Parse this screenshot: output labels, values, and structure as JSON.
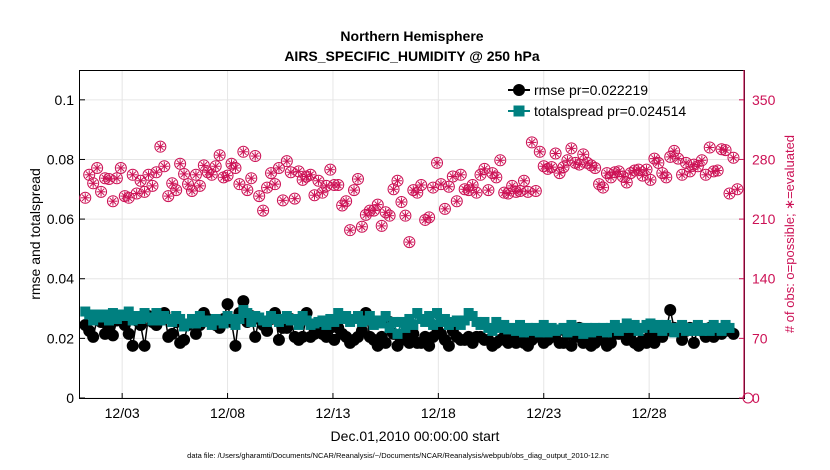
{
  "chart_data": {
    "type": "scatter",
    "title": "Northern Hemisphere",
    "subtitle": "AIRS_SPECIFIC_HUMIDITY @ 250 hPa",
    "xlabel": "Dec.01,2010 00:00:00 start",
    "ylabel": "rmse and totalspread",
    "ylabel_right": "# of obs: o=possible; ∗=evaluated",
    "footer": "data file: /Users/gharamti/Documents/NCAR/Reanalysis/~/Documents/NCAR/Reanalysis/webpub/obs_diag_output_2010-12.nc",
    "xlim": [
      1,
      32.5
    ],
    "ylim": [
      0,
      0.11
    ],
    "ylim_right": [
      0,
      385
    ],
    "x_ticks": [
      3,
      8,
      13,
      18,
      23,
      28
    ],
    "x_tick_labels": [
      "12/03",
      "12/08",
      "12/13",
      "12/18",
      "12/23",
      "12/28"
    ],
    "y_ticks": [
      0,
      0.02,
      0.04,
      0.06,
      0.08,
      0.1
    ],
    "y_tick_labels": [
      "0",
      "0.02",
      "0.04",
      "0.06",
      "0.08",
      "0.1"
    ],
    "y_right_ticks": [
      0,
      70,
      140,
      210,
      280,
      350
    ],
    "y_right_tick_labels": [
      "0",
      "70",
      "140",
      "210",
      "280",
      "350"
    ],
    "legend": {
      "placement": "top-right",
      "entries": [
        "rmse pr=0.022219",
        "totalspread pr=0.024514"
      ]
    },
    "colors": {
      "rmse": "#000000",
      "totalspread": "#008080",
      "obs": "#cc1155",
      "grid": "#e6e6e6"
    },
    "series": [
      {
        "name": "rmse",
        "axis": "left",
        "values": [
          0.0245,
          0.0225,
          0.0205,
          0.0265,
          0.0255,
          0.0215,
          0.0235,
          0.021,
          0.026,
          0.0265,
          0.0245,
          0.0215,
          0.0175,
          0.026,
          0.0245,
          0.0175,
          0.0275,
          0.0255,
          0.0245,
          0.0265,
          0.0285,
          0.0205,
          0.0215,
          0.0255,
          0.0185,
          0.0195,
          0.0245,
          0.0255,
          0.0215,
          0.0245,
          0.0285,
          0.0265,
          0.0255,
          0.0245,
          0.0235,
          0.0265,
          0.0315,
          0.0255,
          0.0175,
          0.0285,
          0.0325,
          0.0255,
          0.0275,
          0.0205,
          0.0265,
          0.0245,
          0.0225,
          0.0265,
          0.0285,
          0.0195,
          0.0235,
          0.0235,
          0.0265,
          0.0205,
          0.0195,
          0.0205,
          0.0285,
          0.0205,
          0.0215,
          0.0225,
          0.0215,
          0.0205,
          0.0235,
          0.0195,
          0.0235,
          0.0215,
          0.0205,
          0.0185,
          0.0195,
          0.0205,
          0.0225,
          0.0285,
          0.0205,
          0.0195,
          0.0175,
          0.0205,
          0.0185,
          0.0255,
          0.0215,
          0.0175,
          0.0195,
          0.0205,
          0.0185,
          0.0215,
          0.0185,
          0.0185,
          0.0205,
          0.0175,
          0.0205,
          0.0235,
          0.0215,
          0.0195,
          0.0175,
          0.0225,
          0.0205,
          0.0195,
          0.0195,
          0.0205,
          0.0185,
          0.0205,
          0.0205,
          0.0195,
          0.0195,
          0.0175,
          0.0185,
          0.0195,
          0.0205,
          0.0185,
          0.0195,
          0.0185,
          0.0215,
          0.0185,
          0.0175,
          0.0195,
          0.0205,
          0.0215,
          0.0185,
          0.0195,
          0.0205,
          0.0215,
          0.0185,
          0.0185,
          0.0215,
          0.0175,
          0.0205,
          0.0235,
          0.0185,
          0.0205,
          0.0175,
          0.0185,
          0.0215,
          0.0195,
          0.0175,
          0.0185,
          0.0215,
          0.0215,
          0.0225,
          0.0195,
          0.0215,
          0.0185,
          0.0175,
          0.0195,
          0.0185,
          0.0215,
          0.0185,
          0.0215,
          0.0205,
          0.0225,
          0.0295,
          0.0235,
          0.0225,
          0.0195,
          0.0225,
          0.0235,
          0.0185,
          0.0235,
          0.0225,
          0.0205,
          0.0235,
          0.0205,
          0.0225,
          0.0215,
          0.0235,
          0.0225,
          0.0215
        ]
      },
      {
        "name": "totalspread",
        "axis": "left",
        "values": [
          0.029,
          0.028,
          0.026,
          0.028,
          0.027,
          0.028,
          0.026,
          0.0285,
          0.0265,
          0.028,
          0.0275,
          0.029,
          0.026,
          0.0275,
          0.0265,
          0.0285,
          0.027,
          0.026,
          0.0285,
          0.026,
          0.0275,
          0.0265,
          0.0255,
          0.0275,
          0.0265,
          0.024,
          0.025,
          0.0265,
          0.025,
          0.0275,
          0.0255,
          0.026,
          0.0245,
          0.0265,
          0.026,
          0.025,
          0.0275,
          0.0265,
          0.0245,
          0.0265,
          0.0295,
          0.0285,
          0.0255,
          0.0275,
          0.027,
          0.026,
          0.0255,
          0.0275,
          0.0265,
          0.0255,
          0.0265,
          0.0275,
          0.026,
          0.0265,
          0.0245,
          0.0275,
          0.026,
          0.0245,
          0.025,
          0.0255,
          0.026,
          0.0245,
          0.0265,
          0.0255,
          0.0285,
          0.0265,
          0.0275,
          0.0255,
          0.0265,
          0.0275,
          0.0255,
          0.026,
          0.0275,
          0.0245,
          0.026,
          0.025,
          0.0275,
          0.0235,
          0.0255,
          0.0215,
          0.0255,
          0.0235,
          0.0265,
          0.0245,
          0.0285,
          0.0265,
          0.0255,
          0.0275,
          0.0245,
          0.0285,
          0.0255,
          0.0265,
          0.0245,
          0.0255,
          0.026,
          0.0245,
          0.026,
          0.0285,
          0.0275,
          0.0255,
          0.0245,
          0.0255,
          0.0235,
          0.0225,
          0.0255,
          0.0235,
          0.0245,
          0.023,
          0.0235,
          0.0225,
          0.0245,
          0.022,
          0.0235,
          0.0225,
          0.0235,
          0.022,
          0.0245,
          0.022,
          0.0235,
          0.0225,
          0.023,
          0.0235,
          0.022,
          0.0245,
          0.0225,
          0.0235,
          0.0215,
          0.0235,
          0.022,
          0.0235,
          0.0225,
          0.0235,
          0.022,
          0.0235,
          0.0245,
          0.0225,
          0.0235,
          0.025,
          0.0235,
          0.0245,
          0.0225,
          0.0235,
          0.0245,
          0.025,
          0.0235,
          0.0245,
          0.0225,
          0.0245,
          0.0235,
          0.022,
          0.0235,
          0.0245,
          0.0225,
          0.0235,
          0.0225,
          0.0245,
          0.0225,
          0.0235,
          0.0225,
          0.0245,
          0.0235,
          0.0225,
          0.0245,
          0.0235
        ]
      },
      {
        "name": "obs possible",
        "axis": "right",
        "marker": "open circle",
        "values": [
          235,
          262,
          252,
          270,
          242,
          258,
          257,
          231,
          258,
          270,
          237,
          235,
          262,
          240,
          255,
          242,
          262,
          249,
          265,
          295,
          272,
          237,
          252,
          244,
          275,
          263,
          251,
          243,
          262,
          249,
          273,
          265,
          262,
          272,
          285,
          259,
          261,
          275,
          270,
          251,
          289,
          244,
          258,
          284,
          237,
          220,
          247,
          264,
          251,
          270,
          232,
          278,
          265,
          234,
          266,
          256,
          260,
          262,
          238,
          255,
          241,
          249,
          268,
          250,
          250,
          226,
          231,
          197,
          244,
          257,
          201,
          215,
          220,
          220,
          227,
          202,
          218,
          214,
          245,
          255,
          230,
          214,
          183,
          244,
          241,
          250,
          209,
          212,
          247,
          276,
          251,
          222,
          248,
          260,
          231,
          262,
          245,
          244,
          250,
          241,
          262,
          269,
          244,
          264,
          259,
          279,
          241,
          240,
          249,
          242,
          243,
          255,
          242,
          300,
          243,
          289,
          272,
          269,
          271,
          287,
          264,
          271,
          279,
          293,
          276,
          274,
          286,
          276,
          273,
          270,
          251,
          247,
          264,
          259,
          265,
          266,
          260,
          253,
          264,
          267,
          268,
          261,
          268,
          256,
          281,
          276,
          264,
          259,
          283,
          290,
          281,
          262,
          276,
          266,
          274,
          272,
          279,
          262,
          294,
          266,
          267,
          292,
          291,
          240,
          282,
          245
        ]
      },
      {
        "name": "obs evaluated",
        "axis": "right",
        "marker": "asterisk",
        "values": [
          235,
          262,
          252,
          270,
          242,
          258,
          257,
          231,
          258,
          270,
          237,
          235,
          262,
          240,
          255,
          242,
          262,
          249,
          265,
          295,
          272,
          237,
          252,
          244,
          275,
          263,
          251,
          243,
          262,
          249,
          273,
          265,
          262,
          272,
          285,
          259,
          261,
          275,
          270,
          251,
          289,
          244,
          258,
          284,
          237,
          220,
          247,
          264,
          251,
          270,
          232,
          278,
          265,
          234,
          266,
          256,
          260,
          262,
          238,
          255,
          241,
          249,
          268,
          250,
          250,
          226,
          231,
          197,
          244,
          257,
          201,
          215,
          220,
          220,
          227,
          202,
          218,
          214,
          245,
          255,
          230,
          214,
          183,
          244,
          241,
          250,
          209,
          212,
          247,
          276,
          251,
          222,
          248,
          260,
          231,
          262,
          245,
          244,
          250,
          241,
          262,
          269,
          244,
          264,
          259,
          279,
          241,
          240,
          249,
          242,
          243,
          255,
          242,
          300,
          243,
          289,
          272,
          269,
          271,
          287,
          264,
          271,
          279,
          293,
          276,
          274,
          286,
          276,
          273,
          270,
          251,
          247,
          264,
          259,
          265,
          266,
          260,
          253,
          264,
          267,
          268,
          261,
          268,
          256,
          281,
          276,
          264,
          259,
          283,
          290,
          281,
          262,
          276,
          266,
          274,
          272,
          279,
          262,
          294,
          266,
          267,
          292,
          291,
          240,
          282,
          245
        ]
      }
    ],
    "x_start": 1.25,
    "x_step": 0.1875
  }
}
